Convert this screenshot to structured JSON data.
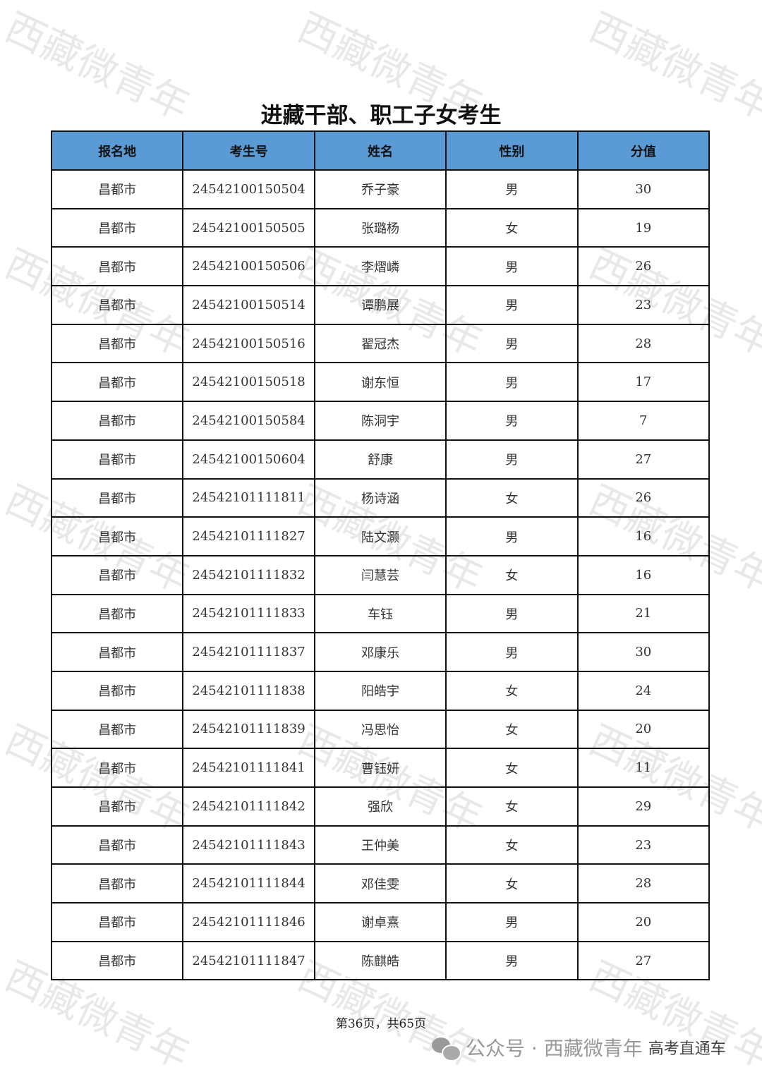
{
  "title": "进藏干部、职工子女考生",
  "headers": [
    "报名地",
    "考生号",
    "姓名",
    "性别",
    "分值"
  ],
  "rows": [
    [
      "昌都市",
      "24542100150504",
      "乔子豪",
      "男",
      "30"
    ],
    [
      "昌都市",
      "24542100150505",
      "张璐杨",
      "女",
      "19"
    ],
    [
      "昌都市",
      "24542100150506",
      "李熠嶙",
      "男",
      "26"
    ],
    [
      "昌都市",
      "24542100150514",
      "谭鹏展",
      "男",
      "23"
    ],
    [
      "昌都市",
      "24542100150516",
      "翟冠杰",
      "男",
      "28"
    ],
    [
      "昌都市",
      "24542100150518",
      "谢东恒",
      "男",
      "17"
    ],
    [
      "昌都市",
      "24542100150584",
      "陈洞宇",
      "男",
      "7"
    ],
    [
      "昌都市",
      "24542100150604",
      "舒康",
      "男",
      "27"
    ],
    [
      "昌都市",
      "24542101111811",
      "杨诗涵",
      "女",
      "26"
    ],
    [
      "昌都市",
      "24542101111827",
      "陆文灏",
      "男",
      "16"
    ],
    [
      "昌都市",
      "24542101111832",
      "闫慧芸",
      "女",
      "16"
    ],
    [
      "昌都市",
      "24542101111833",
      "车钰",
      "男",
      "21"
    ],
    [
      "昌都市",
      "24542101111837",
      "邓康乐",
      "男",
      "30"
    ],
    [
      "昌都市",
      "24542101111838",
      "阳皓宇",
      "女",
      "24"
    ],
    [
      "昌都市",
      "24542101111839",
      "冯思怡",
      "女",
      "20"
    ],
    [
      "昌都市",
      "24542101111841",
      "曹钰妍",
      "女",
      "11"
    ],
    [
      "昌都市",
      "24542101111842",
      "强欣",
      "女",
      "29"
    ],
    [
      "昌都市",
      "24542101111843",
      "王仲美",
      "女",
      "23"
    ],
    [
      "昌都市",
      "24542101111844",
      "邓佳雯",
      "女",
      "28"
    ],
    [
      "昌都市",
      "24542101111846",
      "谢卓熹",
      "男",
      "20"
    ],
    [
      "昌都市",
      "24542101111847",
      "陈麒皓",
      "男",
      "27"
    ]
  ],
  "footer": "第36页，共65页",
  "watermark": "西藏微青年",
  "brand": {
    "text": "公众号 · 西藏微青年",
    "overlay": "高考直通车",
    "icon": "wechat-icon"
  },
  "colors": {
    "header_bg": "#5b9bd5"
  }
}
